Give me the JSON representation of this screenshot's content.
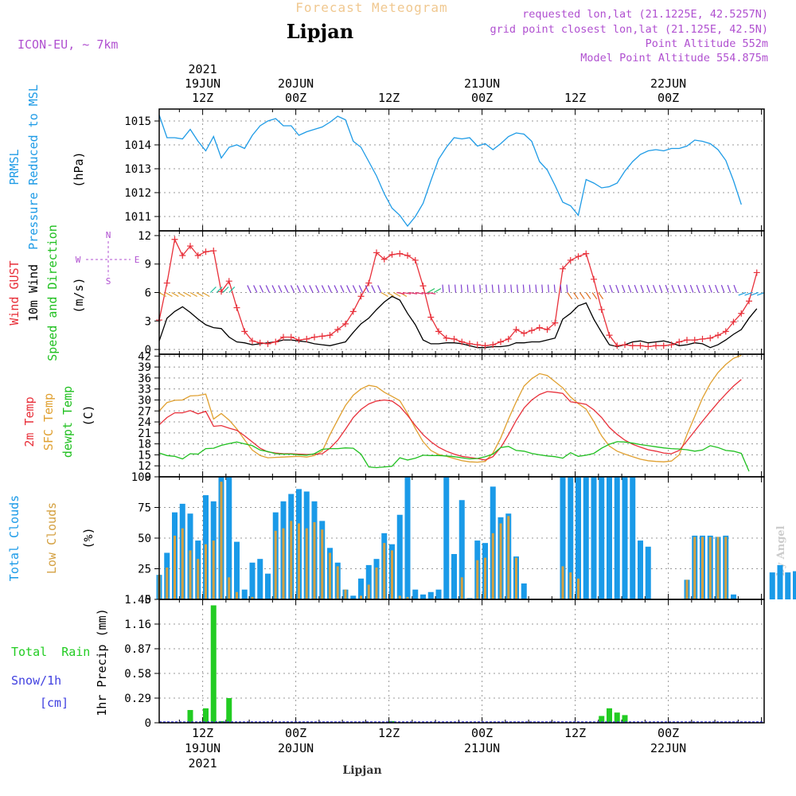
{
  "header": {
    "top_title": "Forecast Meteogram",
    "location": "Lipjan",
    "model": "ICON-EU, ~ 7km",
    "requested": "requested lon,lat (21.1225E, 42.5257N)",
    "grid_point": "grid point closest lon,lat (21.125E, 42.5N)",
    "point_alt": "Point Altitude 552m",
    "model_alt": "Model Point Altitude 554.875m",
    "footer_location": "Lipjan",
    "credit": "by Angel"
  },
  "colors": {
    "pressure": "#1e9be6",
    "gust": "#e8303a",
    "wind": "#000000",
    "temp": "#e8303a",
    "sfc": "#e0a030",
    "dew": "#20c020",
    "total_cloud": "#1a9ae8",
    "low_cloud": "#d4a040",
    "rain": "#22cc22",
    "purple": "#b050d0",
    "snow": "#4040e0"
  },
  "time_axis": {
    "top_year": "2021",
    "top_labels": [
      {
        "h": 12,
        "line1": "19JUN",
        "line2": "12Z"
      },
      {
        "h": 24,
        "line1": "20JUN",
        "line2": "00Z"
      },
      {
        "h": 36,
        "line1": "",
        "line2": "12Z"
      },
      {
        "h": 48,
        "line1": "21JUN",
        "line2": "00Z"
      },
      {
        "h": 60,
        "line1": "",
        "line2": "12Z"
      },
      {
        "h": 72,
        "line1": "22JUN",
        "line2": "00Z"
      }
    ],
    "bottom_labels": [
      {
        "h": 12,
        "line1": "12Z",
        "line2": "19JUN",
        "line3": "2021"
      },
      {
        "h": 24,
        "line1": "00Z",
        "line2": "20JUN",
        "line3": ""
      },
      {
        "h": 36,
        "line1": "12Z",
        "line2": "",
        "line3": ""
      },
      {
        "h": 48,
        "line1": "00Z",
        "line2": "21JUN",
        "line3": ""
      },
      {
        "h": 60,
        "line1": "12Z",
        "line2": "",
        "line3": ""
      },
      {
        "h": 72,
        "line1": "00Z",
        "line2": "22JUN",
        "line3": ""
      }
    ]
  },
  "chart_data": [
    {
      "type": "line",
      "panel": "pressure",
      "title_lines": [
        "PRMSL",
        "Pressure Reduced to MSL"
      ],
      "ylabel": "(hPa)",
      "x_hours_start": 6.4,
      "x_hours_end": 84.4,
      "ylim": [
        1010.4,
        1015.5
      ],
      "yticks": [
        1011,
        1012,
        1013,
        1014,
        1015
      ],
      "values": [
        1015.25,
        1014.3,
        1014.3,
        1014.25,
        1014.65,
        1014.15,
        1013.75,
        1014.35,
        1013.45,
        1013.9,
        1014.0,
        1013.85,
        1014.4,
        1014.8,
        1015.0,
        1015.1,
        1014.8,
        1014.8,
        1014.4,
        1014.55,
        1014.65,
        1014.75,
        1014.95,
        1015.2,
        1015.05,
        1014.15,
        1013.9,
        1013.3,
        1012.7,
        1011.95,
        1011.35,
        1011.05,
        1010.6,
        1011.0,
        1011.55,
        1012.5,
        1013.4,
        1013.9,
        1014.3,
        1014.25,
        1014.3,
        1013.95,
        1014.05,
        1013.8,
        1014.05,
        1014.35,
        1014.5,
        1014.45,
        1014.15,
        1013.3,
        1012.95,
        1012.3,
        1011.6,
        1011.45,
        1011.05,
        1012.55,
        1012.4,
        1012.2,
        1012.25,
        1012.4,
        1012.9,
        1013.3,
        1013.6,
        1013.75,
        1013.8,
        1013.75,
        1013.85,
        1013.85,
        1013.95,
        1014.2,
        1014.15,
        1014.05,
        1013.8,
        1013.35,
        1012.5,
        1011.5
      ]
    },
    {
      "type": "line",
      "panel": "wind",
      "title_lines": [
        "Wind GUST",
        "10m Wind",
        "Speed and Direction"
      ],
      "ylabel": "(m/s)",
      "compass": {
        "n": "N",
        "s": "S",
        "w": "W",
        "e": "E"
      },
      "x_hours_start": 6.4,
      "x_hours_end": 84.4,
      "ylim": [
        -0.5,
        12.5
      ],
      "yticks": [
        0,
        3,
        6,
        9,
        12
      ],
      "series": [
        {
          "name": "Wind GUST",
          "values": [
            3.1,
            7.0,
            11.6,
            9.9,
            10.9,
            9.9,
            10.3,
            10.4,
            6.1,
            7.2,
            4.4,
            1.9,
            0.9,
            0.7,
            0.6,
            0.8,
            1.3,
            1.3,
            1.0,
            1.1,
            1.3,
            1.4,
            1.5,
            2.1,
            2.7,
            4.0,
            5.6,
            7.0,
            10.2,
            9.5,
            10.0,
            10.1,
            9.9,
            9.4,
            6.7,
            3.4,
            1.9,
            1.2,
            1.1,
            0.8,
            0.6,
            0.5,
            0.4,
            0.5,
            0.8,
            1.1,
            2.1,
            1.7,
            2.0,
            2.3,
            2.1,
            2.8,
            8.5,
            9.4,
            9.8,
            10.1,
            7.4,
            4.2,
            1.5,
            0.4,
            0.5,
            0.4,
            0.4,
            0.3,
            0.4,
            0.4,
            0.5,
            0.8,
            1.0,
            1.0,
            1.1,
            1.2,
            1.5,
            1.9,
            2.9,
            3.8,
            5.1,
            8.1
          ]
        },
        {
          "name": "10m Wind",
          "values": [
            0.9,
            3.3,
            4.0,
            4.5,
            3.9,
            3.2,
            2.6,
            2.3,
            2.2,
            1.3,
            0.8,
            0.7,
            0.5,
            0.6,
            0.7,
            0.8,
            1.0,
            1.0,
            0.9,
            0.8,
            0.6,
            0.5,
            0.4,
            0.6,
            0.8,
            1.8,
            2.7,
            3.3,
            4.2,
            5.0,
            5.6,
            5.2,
            3.8,
            2.6,
            1.0,
            0.6,
            0.6,
            0.7,
            0.7,
            0.6,
            0.4,
            0.2,
            0.2,
            0.3,
            0.3,
            0.4,
            0.7,
            0.7,
            0.8,
            0.8,
            1.0,
            1.2,
            3.2,
            3.8,
            4.6,
            4.9,
            3.2,
            1.8,
            0.5,
            0.3,
            0.5,
            0.8,
            0.9,
            0.7,
            0.8,
            0.9,
            0.7,
            0.4,
            0.5,
            0.7,
            0.6,
            0.2,
            0.5,
            1.0,
            1.6,
            2.1,
            3.3,
            4.3
          ]
        }
      ]
    },
    {
      "type": "line",
      "panel": "temperature",
      "title_lines": [
        "2m Temp",
        "SFC Temp",
        "dewpt Temp"
      ],
      "ylabel": "(C)",
      "x_hours_start": 6.4,
      "x_hours_end": 84.4,
      "ylim": [
        9,
        42.5
      ],
      "yticks": [
        9,
        12,
        15,
        18,
        21,
        24,
        27,
        30,
        33,
        36,
        39,
        42
      ],
      "series": [
        {
          "name": "2m Temp",
          "values": [
            23.2,
            25.2,
            26.5,
            26.5,
            27.1,
            26.2,
            26.9,
            22.8,
            23.0,
            22.3,
            21.7,
            20.2,
            18.5,
            16.8,
            15.8,
            15.5,
            15.3,
            15.3,
            15.2,
            15.1,
            15.2,
            15.3,
            16.8,
            19.0,
            22.0,
            25.2,
            27.4,
            28.9,
            29.7,
            30.0,
            29.7,
            28.2,
            25.8,
            23.0,
            20.5,
            18.6,
            17.1,
            16.0,
            15.2,
            14.6,
            14.3,
            14.0,
            13.6,
            14.5,
            17.0,
            20.5,
            24.4,
            27.8,
            30.0,
            31.5,
            32.3,
            32.1,
            31.8,
            29.5,
            29.2,
            28.8,
            27.3,
            25.2,
            22.5,
            20.6,
            19.0,
            17.9,
            17.1,
            16.4,
            16.0,
            15.5,
            15.3,
            16.2,
            18.8,
            21.5,
            24.2,
            26.8,
            29.3,
            31.6,
            33.8,
            35.6
          ]
        },
        {
          "name": "SFC Temp",
          "values": [
            27.0,
            29.3,
            29.9,
            30.0,
            31.1,
            31.2,
            31.6,
            24.8,
            26.3,
            24.5,
            22.1,
            19.1,
            16.3,
            14.8,
            14.2,
            14.3,
            14.4,
            14.5,
            14.6,
            14.4,
            14.8,
            16.0,
            20.5,
            24.6,
            28.5,
            31.3,
            33.0,
            34.0,
            33.6,
            32.1,
            31.0,
            29.8,
            26.3,
            22.2,
            18.6,
            16.2,
            15.1,
            14.6,
            14.0,
            13.4,
            13.1,
            13.0,
            13.2,
            15.5,
            19.6,
            24.8,
            29.5,
            33.8,
            35.8,
            37.2,
            36.7,
            35.0,
            33.3,
            30.8,
            29.0,
            27.5,
            24.1,
            20.2,
            17.4,
            16.0,
            15.2,
            14.5,
            13.8,
            13.4,
            13.2,
            13.1,
            13.3,
            15.0,
            20.5,
            25.5,
            30.5,
            34.5,
            37.5,
            39.7,
            41.4,
            42.2
          ]
        },
        {
          "name": "dewpt Temp",
          "values": [
            15.5,
            14.8,
            14.6,
            13.9,
            15.3,
            15.2,
            16.7,
            16.8,
            17.6,
            18.1,
            18.5,
            18.0,
            17.5,
            16.3,
            15.9,
            15.3,
            15.2,
            15.2,
            15.0,
            14.9,
            15.3,
            16.5,
            16.7,
            16.7,
            16.9,
            16.8,
            15.2,
            11.7,
            11.5,
            11.7,
            11.9,
            14.2,
            13.6,
            14.1,
            14.9,
            14.8,
            14.8,
            14.7,
            14.5,
            14.2,
            13.9,
            14.0,
            14.5,
            15.2,
            17.0,
            17.3,
            16.2,
            16.0,
            15.4,
            15.0,
            14.7,
            14.5,
            14.1,
            15.6,
            14.6,
            14.9,
            15.4,
            16.8,
            17.9,
            18.6,
            18.5,
            18.2,
            17.8,
            17.5,
            17.2,
            16.9,
            16.7,
            16.6,
            16.4,
            16.0,
            16.3,
            17.5,
            17.0,
            16.2,
            16.0,
            15.4,
            10.5
          ]
        }
      ]
    },
    {
      "type": "bar",
      "panel": "clouds",
      "title_lines": [
        "Total Clouds",
        "Low Clouds"
      ],
      "ylabel": "(%)",
      "x_hours_start": 6.4,
      "ylim": [
        0,
        100
      ],
      "yticks": [
        0,
        25,
        50,
        75,
        100
      ],
      "series": [
        {
          "name": "Total Clouds",
          "values": [
            20,
            38,
            71,
            78,
            70,
            48,
            85,
            80,
            100,
            100,
            47,
            8,
            30,
            33,
            21,
            71,
            80,
            86,
            90,
            88,
            80,
            64,
            42,
            30,
            8,
            3,
            17,
            28,
            33,
            54,
            45,
            69,
            100,
            8,
            4,
            6,
            8,
            100,
            37,
            81,
            1,
            48,
            46,
            92,
            67,
            70,
            35,
            13,
            0,
            0,
            0,
            0,
            100,
            100,
            100,
            100,
            100,
            100,
            100,
            100,
            100,
            100,
            48,
            43,
            0,
            0,
            0,
            0,
            16,
            52,
            52,
            52,
            51,
            52,
            4,
            0,
            0,
            0,
            0,
            22,
            28,
            22,
            23
          ]
        },
        {
          "name": "Low Clouds",
          "values": [
            20,
            26,
            52,
            58,
            40,
            33,
            45,
            48,
            96,
            18,
            6,
            0,
            2,
            0,
            0,
            56,
            58,
            64,
            62,
            58,
            63,
            57,
            38,
            27,
            8,
            0,
            3,
            12,
            26,
            46,
            40,
            3,
            2,
            0,
            0,
            0,
            0,
            0,
            0,
            18,
            0,
            32,
            34,
            54,
            62,
            68,
            34,
            0,
            0,
            0,
            0,
            0,
            27,
            22,
            17,
            0,
            0,
            0,
            0,
            0,
            0,
            0,
            0,
            0,
            0,
            0,
            0,
            0,
            16,
            51,
            51,
            51,
            51,
            51,
            0,
            0,
            0,
            0,
            0,
            0,
            0,
            0,
            0
          ]
        }
      ]
    },
    {
      "type": "bar",
      "panel": "precip",
      "title_lines": [
        "Total  Rain",
        "Snow/1h",
        "[cm]"
      ],
      "ylabel": "1hr Precip (mm)",
      "x_hours_start": 6.4,
      "ylim": [
        0,
        1.45
      ],
      "yticks": [
        0,
        0.29,
        0.58,
        0.87,
        1.16,
        1.45
      ],
      "series": [
        {
          "name": "Total Rain",
          "values": [
            0,
            0,
            0,
            0,
            0.15,
            0,
            0.17,
            1.38,
            0.02,
            0.29,
            0,
            0,
            0,
            0,
            0,
            0,
            0,
            0,
            0,
            0,
            0,
            0,
            0,
            0,
            0,
            0,
            0,
            0,
            0,
            0,
            0.02,
            0,
            0,
            0,
            0,
            0,
            0,
            0,
            0,
            0,
            0,
            0,
            0,
            0,
            0,
            0,
            0,
            0,
            0,
            0,
            0,
            0,
            0,
            0,
            0,
            0,
            0,
            0.08,
            0.17,
            0.12,
            0.09,
            0,
            0,
            0,
            0,
            0,
            0,
            0,
            0,
            0,
            0,
            0,
            0,
            0,
            0,
            0,
            0,
            0,
            0,
            0,
            0,
            0,
            0,
            0
          ]
        }
      ]
    }
  ]
}
